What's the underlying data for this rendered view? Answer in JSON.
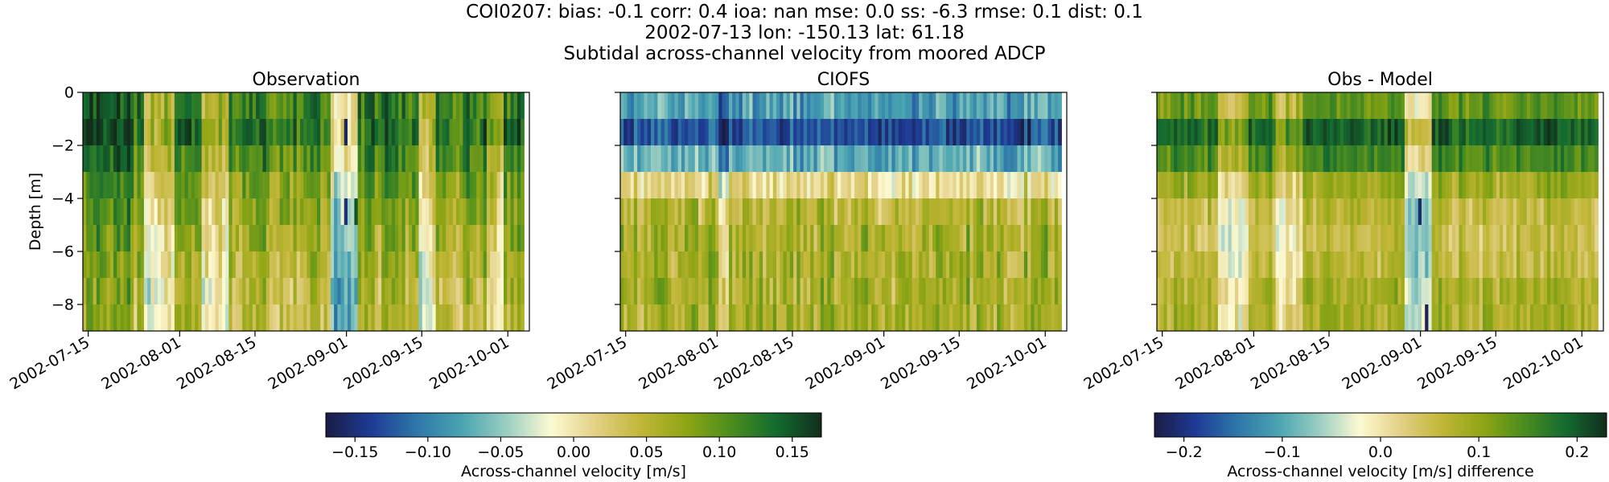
{
  "figure": {
    "title_lines": [
      "COI0207: bias: -0.1  corr: 0.4  ioa: nan  mse: 0.0  ss: -6.3  rmse: 0.1  dist: 0.1",
      "2002-07-13 lon: -150.13 lat: 61.18",
      "Subtidal across-channel velocity from moored ADCP"
    ]
  },
  "colors": {
    "cmap": [
      "#1b1c44",
      "#1e3b95",
      "#2e76a8",
      "#49a3b1",
      "#9acdc2",
      "#fdfad2",
      "#e2cf84",
      "#c1b637",
      "#8ea514",
      "#4b8d1f",
      "#146b30",
      "#122e1b"
    ],
    "frame": "#000000"
  },
  "chart_data": [
    {
      "type": "heatmap",
      "title": "Observation",
      "ylabel": "Depth [m]",
      "xlim": [
        "2002-07-14",
        "2002-10-05"
      ],
      "ylim": [
        -9,
        0
      ],
      "x_ticks": [
        "2002-07-15",
        "2002-08-01",
        "2002-08-15",
        "2002-09-01",
        "2002-09-15",
        "2002-10-01"
      ],
      "y_ticks": [
        0,
        -2,
        -4,
        -6,
        -8
      ],
      "depths": [
        0,
        -1,
        -2,
        -3,
        -4,
        -5,
        -6,
        -7,
        -8
      ],
      "x_start": "2002-07-14",
      "x_end": "2002-10-04",
      "n_columns": 130,
      "clim": [
        -0.17,
        0.17
      ],
      "profile": [
        0.12,
        0.13,
        0.11,
        0.09,
        0.08,
        0.07,
        0.06,
        0.05,
        0.05
      ],
      "features": [
        {
          "from": "2002-07-14",
          "to": "2002-07-23",
          "delta": 0.03
        },
        {
          "from": "2002-07-25",
          "to": "2002-07-31",
          "delta": -0.07
        },
        {
          "from": "2002-08-05",
          "to": "2002-08-10",
          "delta": -0.06
        },
        {
          "from": "2002-08-29",
          "to": "2002-09-03",
          "delta": -0.12
        },
        {
          "from": "2002-09-14",
          "to": "2002-09-17",
          "delta": -0.07
        },
        {
          "from": "2002-09-27",
          "to": "2002-09-30",
          "delta": -0.05
        }
      ],
      "spots": [
        {
          "date": "2002-09-01",
          "depth": -1,
          "value": -0.16
        },
        {
          "date": "2002-09-01",
          "depth": -4,
          "value": -0.15
        },
        {
          "date": "2002-09-03",
          "depth": -4,
          "value": 0.15
        }
      ],
      "colorbar": {
        "label": "Across-channel velocity [m/s]",
        "ticks": [
          -0.15,
          -0.1,
          -0.05,
          0.0,
          0.05,
          0.1,
          0.15
        ],
        "tick_labels": [
          "−0.15",
          "−0.10",
          "−0.05",
          "0.00",
          "0.05",
          "0.10",
          "0.15"
        ]
      }
    },
    {
      "type": "heatmap",
      "title": "CIOFS",
      "xlim": [
        "2002-07-14",
        "2002-10-05"
      ],
      "ylim": [
        -9,
        0
      ],
      "x_ticks": [
        "2002-07-15",
        "2002-08-01",
        "2002-08-15",
        "2002-09-01",
        "2002-09-15",
        "2002-10-01"
      ],
      "y_ticks": [
        0,
        -2,
        -4,
        -6,
        -8
      ],
      "depths": [
        0,
        -1,
        -2,
        -3,
        -4,
        -5,
        -6,
        -7,
        -8
      ],
      "x_start": "2002-07-14",
      "x_end": "2002-10-04",
      "n_columns": 130,
      "clim": [
        -0.17,
        0.17
      ],
      "profile": [
        -0.08,
        -0.13,
        -0.07,
        0.01,
        0.05,
        0.06,
        0.06,
        0.06,
        0.06
      ],
      "features": [
        {
          "from": "2002-08-01",
          "to": "2002-08-03",
          "delta": -0.02
        }
      ],
      "spots": []
    },
    {
      "type": "heatmap",
      "title": "Obs - Model",
      "xlim": [
        "2002-07-14",
        "2002-10-05"
      ],
      "ylim": [
        -9,
        0
      ],
      "x_ticks": [
        "2002-07-15",
        "2002-08-01",
        "2002-08-15",
        "2002-09-01",
        "2002-09-15",
        "2002-10-01"
      ],
      "y_ticks": [
        0,
        -2,
        -4,
        -6,
        -8
      ],
      "depths": [
        0,
        -1,
        -2,
        -3,
        -4,
        -5,
        -6,
        -7,
        -8
      ],
      "x_start": "2002-07-14",
      "x_end": "2002-10-04",
      "n_columns": 130,
      "clim": [
        -0.23,
        0.23
      ],
      "profile": [
        0.13,
        0.19,
        0.15,
        0.09,
        0.06,
        0.05,
        0.06,
        0.08,
        0.08
      ],
      "features": [
        {
          "from": "2002-07-25",
          "to": "2002-07-31",
          "delta": -0.08
        },
        {
          "from": "2002-08-05",
          "to": "2002-08-10",
          "delta": -0.06
        },
        {
          "from": "2002-08-29",
          "to": "2002-09-03",
          "delta": -0.14
        }
      ],
      "spots": [
        {
          "date": "2002-09-01",
          "depth": -4,
          "value": -0.21
        },
        {
          "date": "2002-09-02",
          "depth": -8,
          "value": -0.22
        }
      ],
      "colorbar": {
        "label": "Across-channel velocity [m/s] difference",
        "ticks": [
          -0.2,
          -0.1,
          0.0,
          0.1,
          0.2
        ],
        "tick_labels": [
          "−0.2",
          "−0.1",
          "0.0",
          "0.1",
          "0.2"
        ]
      }
    }
  ]
}
